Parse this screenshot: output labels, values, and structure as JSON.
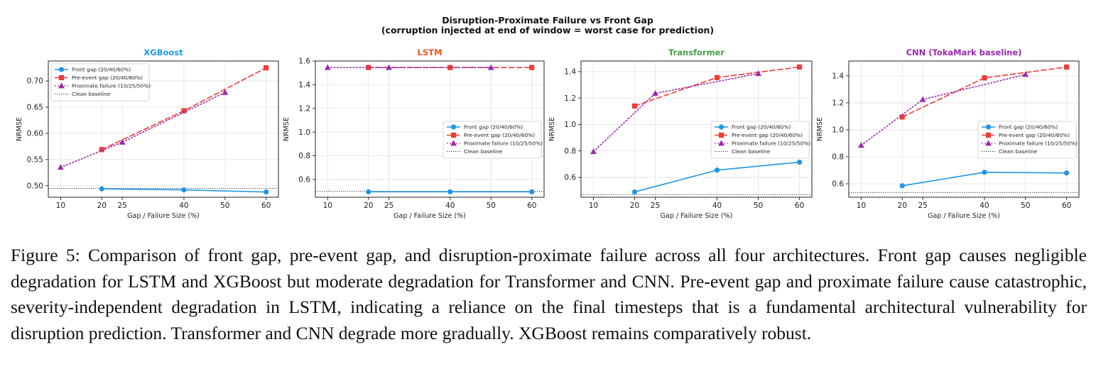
{
  "figure_title": "Disruption-Proximate Failure vs Front Gap",
  "figure_subtitle": "(corruption injected at end of window = worst case for prediction)",
  "caption": "Figure 5: Comparison of front gap, pre-event gap, and disruption-proximate failure across all four architectures. Front gap causes negligible degradation for LSTM and XGBoost but moderate degradation for Transformer and CNN. Pre-event gap and proximate failure cause catastrophic, severity-independent degradation in LSTM, indicating a reliance on the final timesteps that is a fundamental architectural vulnerability for disruption prediction. Transformer and CNN degrade more gradually. XGBoost remains comparatively robust.",
  "colors": {
    "front_gap": "#1f96e6",
    "pre_event_gap": "#ef3b36",
    "proximate_failure": "#9c27b0",
    "clean_baseline": "#333333",
    "xgboost_title": "#1f96e6",
    "lstm_title": "#f4511e",
    "transformer_title": "#43a047",
    "cnn_title": "#9c27b0"
  },
  "chart_data": [
    {
      "type": "line",
      "title": "XGBoost",
      "title_color_key": "xgboost_title",
      "xlabel": "Gap / Failure Size (%)",
      "ylabel": "NRMSE",
      "xlim": [
        7,
        63
      ],
      "ylim": [
        0.478,
        0.738
      ],
      "xticks": [
        10,
        20,
        25,
        40,
        50,
        60
      ],
      "yticks": [
        0.5,
        0.55,
        0.6,
        0.65,
        0.7
      ],
      "ytick_labels": [
        "0.50",
        "0.55",
        "0.60",
        "0.65",
        "0.70"
      ],
      "grid": true,
      "legend_position": "upper-left",
      "clean_baseline": 0.495,
      "series": [
        {
          "name": "Front gap (20/40/60%)",
          "key": "front",
          "x": [
            20,
            40,
            60
          ],
          "y": [
            0.494,
            0.492,
            0.488
          ]
        },
        {
          "name": "Pre-event gap (20/40/60%)",
          "key": "pre",
          "x": [
            20,
            40,
            60
          ],
          "y": [
            0.569,
            0.643,
            0.725
          ]
        },
        {
          "name": "Proximate failure (10/25/50%)",
          "key": "prox",
          "x": [
            10,
            25,
            50
          ],
          "y": [
            0.535,
            0.583,
            0.678
          ]
        }
      ],
      "baseline_label": "Clean baseline"
    },
    {
      "type": "line",
      "title": "LSTM",
      "title_color_key": "lstm_title",
      "xlabel": "Gap / Failure Size (%)",
      "ylabel": "NRMSE",
      "xlim": [
        7,
        63
      ],
      "ylim": [
        0.45,
        1.6
      ],
      "xticks": [
        10,
        20,
        25,
        40,
        50,
        60
      ],
      "yticks": [
        0.6,
        0.8,
        1.0,
        1.2,
        1.4,
        1.6
      ],
      "ytick_labels": [
        "0.6",
        "0.8",
        "1.0",
        "1.2",
        "1.4",
        "1.6"
      ],
      "grid": true,
      "legend_position": "center-right",
      "clean_baseline": 0.5,
      "series": [
        {
          "name": "Front gap (20/40/60%)",
          "key": "front",
          "x": [
            20,
            40,
            60
          ],
          "y": [
            0.496,
            0.496,
            0.496
          ]
        },
        {
          "name": "Pre-event gap (20/40/60%)",
          "key": "pre",
          "x": [
            20,
            40,
            60
          ],
          "y": [
            1.545,
            1.545,
            1.545
          ]
        },
        {
          "name": "Proximate failure (10/25/50%)",
          "key": "prox",
          "x": [
            10,
            25,
            50
          ],
          "y": [
            1.545,
            1.545,
            1.545
          ]
        }
      ],
      "baseline_label": "Clean baseline"
    },
    {
      "type": "line",
      "title": "Transformer",
      "title_color_key": "transformer_title",
      "xlabel": "Gap / Failure Size (%)",
      "ylabel": "NRMSE",
      "xlim": [
        7,
        63
      ],
      "ylim": [
        0.45,
        1.48
      ],
      "xticks": [
        10,
        20,
        25,
        40,
        50,
        60
      ],
      "yticks": [
        0.6,
        0.8,
        1.0,
        1.2,
        1.4
      ],
      "ytick_labels": [
        "0.6",
        "0.8",
        "1.0",
        "1.2",
        "1.4"
      ],
      "grid": true,
      "legend_position": "center-right",
      "clean_baseline": 0.47,
      "series": [
        {
          "name": "Front gap (20/40/60%)",
          "key": "front",
          "x": [
            20,
            40,
            60
          ],
          "y": [
            0.49,
            0.655,
            0.715
          ]
        },
        {
          "name": "Pre-event gap (20/40/60%)",
          "key": "pre",
          "x": [
            20,
            40,
            60
          ],
          "y": [
            1.14,
            1.355,
            1.435
          ]
        },
        {
          "name": "Proximate failure (10/25/50%)",
          "key": "prox",
          "x": [
            10,
            25,
            50
          ],
          "y": [
            0.795,
            1.235,
            1.385
          ]
        }
      ],
      "baseline_label": "Clean baseline"
    },
    {
      "type": "line",
      "title": "CNN (TokaMark baseline)",
      "title_color_key": "cnn_title",
      "xlabel": "Gap / Failure Size (%)",
      "ylabel": "NRMSE",
      "xlim": [
        7,
        63
      ],
      "ylim": [
        0.5,
        1.51
      ],
      "xticks": [
        10,
        20,
        25,
        40,
        50,
        60
      ],
      "yticks": [
        0.6,
        0.8,
        1.0,
        1.2,
        1.4
      ],
      "ytick_labels": [
        "0.6",
        "0.8",
        "1.0",
        "1.2",
        "1.4"
      ],
      "grid": true,
      "legend_position": "center-right",
      "clean_baseline": 0.535,
      "series": [
        {
          "name": "Front gap (20/40/60%)",
          "key": "front",
          "x": [
            20,
            40,
            60
          ],
          "y": [
            0.585,
            0.685,
            0.68
          ]
        },
        {
          "name": "Pre-event gap (20/40/60%)",
          "key": "pre",
          "x": [
            20,
            40,
            60
          ],
          "y": [
            1.095,
            1.385,
            1.465
          ]
        },
        {
          "name": "Proximate failure (10/25/50%)",
          "key": "prox",
          "x": [
            10,
            25,
            50
          ],
          "y": [
            0.885,
            1.225,
            1.41
          ]
        }
      ],
      "baseline_label": "Clean baseline"
    }
  ]
}
